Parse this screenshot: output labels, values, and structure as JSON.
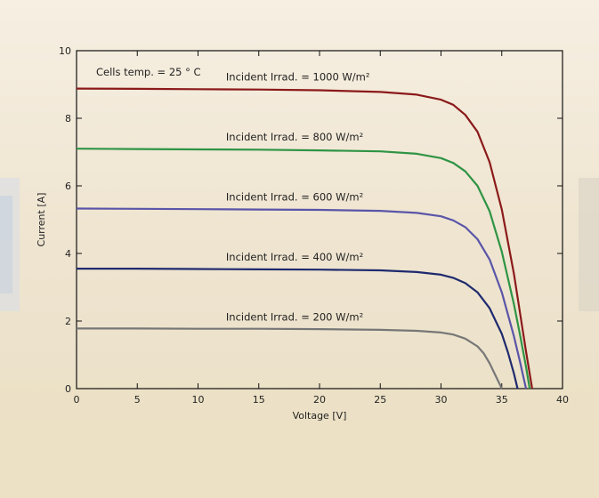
{
  "chart_data": {
    "type": "line",
    "title": "",
    "xlabel": "Voltage [V]",
    "ylabel": "Current [A]",
    "xlim": [
      0,
      40
    ],
    "ylim": [
      0,
      10
    ],
    "xticks": [
      0,
      5,
      10,
      15,
      20,
      25,
      30,
      35,
      40
    ],
    "yticks": [
      0,
      2,
      4,
      6,
      8,
      10
    ],
    "grid": false,
    "legend": "none",
    "annotations": {
      "cells_temp": "Cells temp. = 25 ° C"
    },
    "series": [
      {
        "label": "Incident Irrad. = 1000 W/m²",
        "color": "#8b1a1a",
        "x": [
          0,
          5,
          10,
          15,
          20,
          25,
          28,
          30,
          31,
          32,
          33,
          34,
          35,
          36,
          36.5,
          37,
          37.5
        ],
        "y": [
          8.88,
          8.87,
          8.86,
          8.85,
          8.83,
          8.78,
          8.7,
          8.55,
          8.4,
          8.1,
          7.6,
          6.7,
          5.3,
          3.4,
          2.25,
          1.1,
          0
        ]
      },
      {
        "label": "Incident Irrad. = 800 W/m²",
        "color": "#2e9444",
        "x": [
          0,
          5,
          10,
          15,
          20,
          25,
          28,
          30,
          31,
          32,
          33,
          34,
          35,
          36,
          36.5,
          37,
          37.3
        ],
        "y": [
          7.1,
          7.09,
          7.08,
          7.07,
          7.05,
          7.02,
          6.95,
          6.82,
          6.68,
          6.43,
          6.0,
          5.25,
          4.05,
          2.5,
          1.6,
          0.65,
          0
        ]
      },
      {
        "label": "Incident Irrad. = 600 W/m²",
        "color": "#5a55a8",
        "x": [
          0,
          5,
          10,
          15,
          20,
          25,
          28,
          30,
          31,
          32,
          33,
          34,
          35,
          36,
          36.5,
          37
        ],
        "y": [
          5.33,
          5.32,
          5.31,
          5.3,
          5.29,
          5.26,
          5.2,
          5.1,
          4.98,
          4.78,
          4.42,
          3.82,
          2.85,
          1.55,
          0.8,
          0
        ]
      },
      {
        "label": "Incident Irrad. = 400 W/m²",
        "color": "#1f2a6e",
        "x": [
          0,
          5,
          10,
          15,
          20,
          25,
          28,
          30,
          31,
          32,
          33,
          34,
          35,
          35.5,
          36,
          36.3
        ],
        "y": [
          3.55,
          3.55,
          3.54,
          3.53,
          3.52,
          3.5,
          3.45,
          3.37,
          3.28,
          3.12,
          2.85,
          2.38,
          1.62,
          1.08,
          0.45,
          0
        ]
      },
      {
        "label": "Incident Irrad. = 200 W/m²",
        "color": "#777777",
        "x": [
          0,
          5,
          10,
          15,
          20,
          25,
          28,
          30,
          31,
          32,
          33,
          33.5,
          34,
          34.5,
          35
        ],
        "y": [
          1.78,
          1.78,
          1.77,
          1.77,
          1.76,
          1.74,
          1.71,
          1.66,
          1.6,
          1.48,
          1.25,
          1.05,
          0.75,
          0.38,
          0
        ]
      }
    ]
  }
}
